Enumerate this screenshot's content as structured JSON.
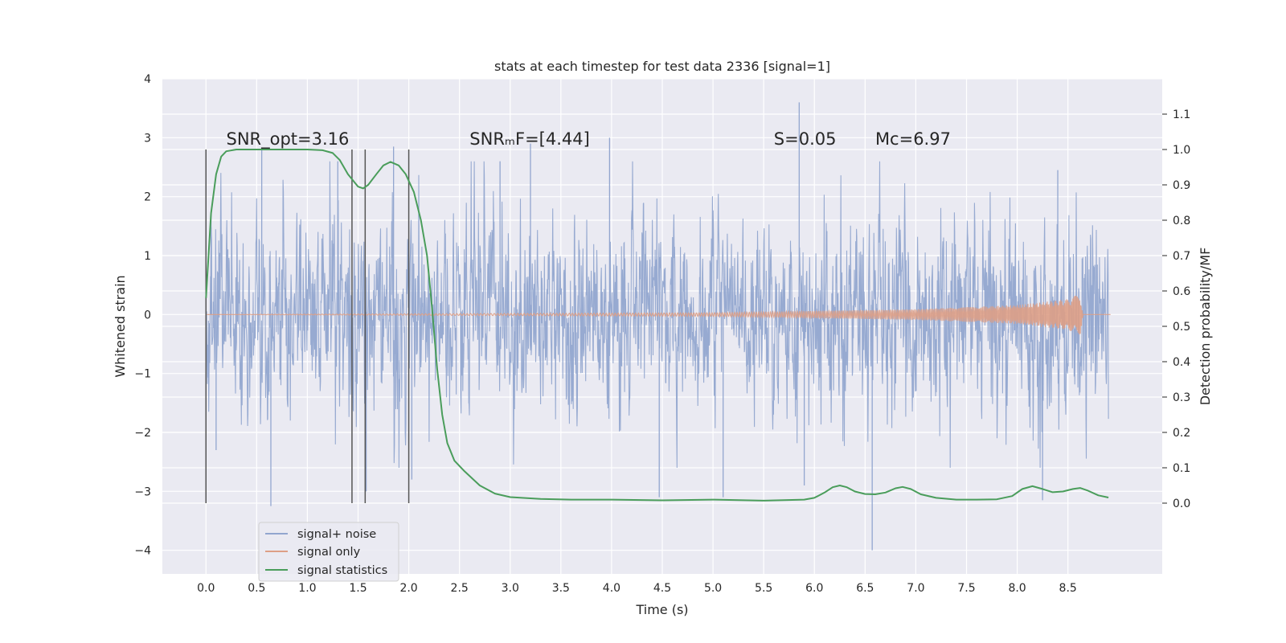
{
  "chart_data": {
    "type": "line",
    "title": "stats at each timestep for test data 2336 [signal=1]",
    "xlabel": "Time (s)",
    "ylabel": "Whitened strain",
    "y2label": "Detection probability/MF",
    "xlim": [
      -0.43,
      9.43
    ],
    "ylim": [
      -4.4,
      4.0
    ],
    "y2lim": [
      -0.2,
      1.2
    ],
    "x_ticks": [
      0.0,
      0.5,
      1.0,
      1.5,
      2.0,
      2.5,
      3.0,
      3.5,
      4.0,
      4.5,
      5.0,
      5.5,
      6.0,
      6.5,
      7.0,
      7.5,
      8.0,
      8.5
    ],
    "x_tick_labels": [
      "0.0",
      "0.5",
      "1.0",
      "1.5",
      "2.0",
      "2.5",
      "3.0",
      "3.5",
      "4.0",
      "4.5",
      "5.0",
      "5.5",
      "6.0",
      "6.5",
      "7.0",
      "7.5",
      "8.0",
      "8.5"
    ],
    "y_ticks": [
      -4,
      -3,
      -2,
      -1,
      0,
      1,
      2,
      3,
      4
    ],
    "y_tick_labels": [
      "−4",
      "−3",
      "−2",
      "−1",
      "0",
      "1",
      "2",
      "3",
      "4"
    ],
    "y2_ticks": [
      0.0,
      0.1,
      0.2,
      0.3,
      0.4,
      0.5,
      0.6,
      0.7,
      0.8,
      0.9,
      1.0,
      1.1
    ],
    "y2_tick_labels": [
      "0.0",
      "0.1",
      "0.2",
      "0.3",
      "0.4",
      "0.5",
      "0.6",
      "0.7",
      "0.8",
      "0.9",
      "1.0",
      "1.1"
    ],
    "grid": true,
    "legend_position": "lower-left",
    "series": [
      {
        "name": "signal+ noise",
        "color": "#92a6cf",
        "axis": "left",
        "kind": "noise",
        "t_start": 0.0,
        "t_end": 8.9,
        "typical_range": [
          -1.6,
          1.6
        ],
        "notable_spikes": [
          {
            "t": 0.05,
            "value": 1.7
          },
          {
            "t": 0.1,
            "value": -2.3
          },
          {
            "t": 0.55,
            "value": 2.8
          },
          {
            "t": 0.64,
            "value": -3.25
          },
          {
            "t": 1.3,
            "value": 2.6
          },
          {
            "t": 1.58,
            "value": -3.0
          },
          {
            "t": 1.85,
            "value": 2.85
          },
          {
            "t": 2.03,
            "value": -2.8
          },
          {
            "t": 2.9,
            "value": 2.6
          },
          {
            "t": 3.2,
            "value": 2.9
          },
          {
            "t": 3.98,
            "value": 3.0
          },
          {
            "t": 4.47,
            "value": -3.1
          },
          {
            "t": 5.1,
            "value": -3.1
          },
          {
            "t": 5.85,
            "value": 3.6
          },
          {
            "t": 5.9,
            "value": -2.9
          },
          {
            "t": 6.57,
            "value": -4.0
          },
          {
            "t": 8.25,
            "value": -3.15
          },
          {
            "t": 8.4,
            "value": 2.45
          }
        ]
      },
      {
        "name": "signal only",
        "color": "#dd9f86",
        "axis": "left",
        "kind": "chirp",
        "t_start": 0.0,
        "t_end": 8.92,
        "merger_t": 8.65,
        "envelope_points": [
          [
            0.0,
            0.0
          ],
          [
            5.0,
            0.03
          ],
          [
            6.0,
            0.06
          ],
          [
            7.0,
            0.09
          ],
          [
            8.0,
            0.16
          ],
          [
            8.5,
            0.26
          ],
          [
            8.62,
            0.36
          ],
          [
            8.65,
            0.0
          ]
        ]
      },
      {
        "name": "signal statistics",
        "color": "#4a9d5b",
        "axis": "right",
        "kind": "line",
        "points": [
          [
            0.0,
            0.58
          ],
          [
            0.05,
            0.82
          ],
          [
            0.1,
            0.93
          ],
          [
            0.15,
            0.98
          ],
          [
            0.2,
            0.995
          ],
          [
            0.3,
            1.0
          ],
          [
            0.6,
            1.0
          ],
          [
            1.0,
            1.0
          ],
          [
            1.15,
            0.998
          ],
          [
            1.25,
            0.99
          ],
          [
            1.32,
            0.97
          ],
          [
            1.4,
            0.93
          ],
          [
            1.5,
            0.895
          ],
          [
            1.55,
            0.89
          ],
          [
            1.6,
            0.9
          ],
          [
            1.68,
            0.93
          ],
          [
            1.75,
            0.955
          ],
          [
            1.82,
            0.965
          ],
          [
            1.9,
            0.955
          ],
          [
            1.97,
            0.93
          ],
          [
            2.05,
            0.88
          ],
          [
            2.12,
            0.8
          ],
          [
            2.18,
            0.7
          ],
          [
            2.23,
            0.55
          ],
          [
            2.28,
            0.38
          ],
          [
            2.33,
            0.25
          ],
          [
            2.38,
            0.17
          ],
          [
            2.45,
            0.12
          ],
          [
            2.55,
            0.09
          ],
          [
            2.7,
            0.05
          ],
          [
            2.85,
            0.027
          ],
          [
            3.0,
            0.017
          ],
          [
            3.3,
            0.012
          ],
          [
            3.6,
            0.01
          ],
          [
            4.0,
            0.01
          ],
          [
            4.5,
            0.008
          ],
          [
            5.0,
            0.01
          ],
          [
            5.5,
            0.007
          ],
          [
            5.9,
            0.01
          ],
          [
            6.0,
            0.015
          ],
          [
            6.1,
            0.03
          ],
          [
            6.18,
            0.045
          ],
          [
            6.25,
            0.05
          ],
          [
            6.32,
            0.045
          ],
          [
            6.4,
            0.033
          ],
          [
            6.5,
            0.026
          ],
          [
            6.6,
            0.025
          ],
          [
            6.7,
            0.03
          ],
          [
            6.8,
            0.042
          ],
          [
            6.87,
            0.046
          ],
          [
            6.95,
            0.04
          ],
          [
            7.05,
            0.025
          ],
          [
            7.2,
            0.015
          ],
          [
            7.4,
            0.01
          ],
          [
            7.6,
            0.01
          ],
          [
            7.8,
            0.011
          ],
          [
            7.95,
            0.02
          ],
          [
            8.05,
            0.04
          ],
          [
            8.15,
            0.048
          ],
          [
            8.25,
            0.04
          ],
          [
            8.35,
            0.031
          ],
          [
            8.45,
            0.033
          ],
          [
            8.55,
            0.04
          ],
          [
            8.62,
            0.043
          ],
          [
            8.7,
            0.035
          ],
          [
            8.8,
            0.022
          ],
          [
            8.9,
            0.016
          ]
        ]
      }
    ],
    "vertical_lines": [
      {
        "t": 0.0,
        "range": [
          -3.2,
          2.8
        ]
      },
      {
        "t": 1.44,
        "range": [
          -3.2,
          2.8
        ]
      },
      {
        "t": 1.57,
        "range": [
          -3.2,
          2.8
        ]
      },
      {
        "t": 2.0,
        "range": [
          -3.2,
          2.8
        ]
      }
    ],
    "vertical_line_color": "#555555",
    "annotations": [
      {
        "id": "snr-opt",
        "text": "SNR_opt=3.16",
        "t": 0.2,
        "value": 2.88
      },
      {
        "id": "snr-mf",
        "text": "SNRₘF=[4.44]",
        "t": 2.6,
        "value": 2.88
      },
      {
        "id": "s-value",
        "text": "S=0.05",
        "t": 5.6,
        "value": 2.88
      },
      {
        "id": "mc-value",
        "text": "Mc=6.97",
        "t": 6.6,
        "value": 2.88
      }
    ],
    "background_color": "#eaeaf2",
    "grid_color": "#ffffff",
    "text_color": "#262626"
  }
}
